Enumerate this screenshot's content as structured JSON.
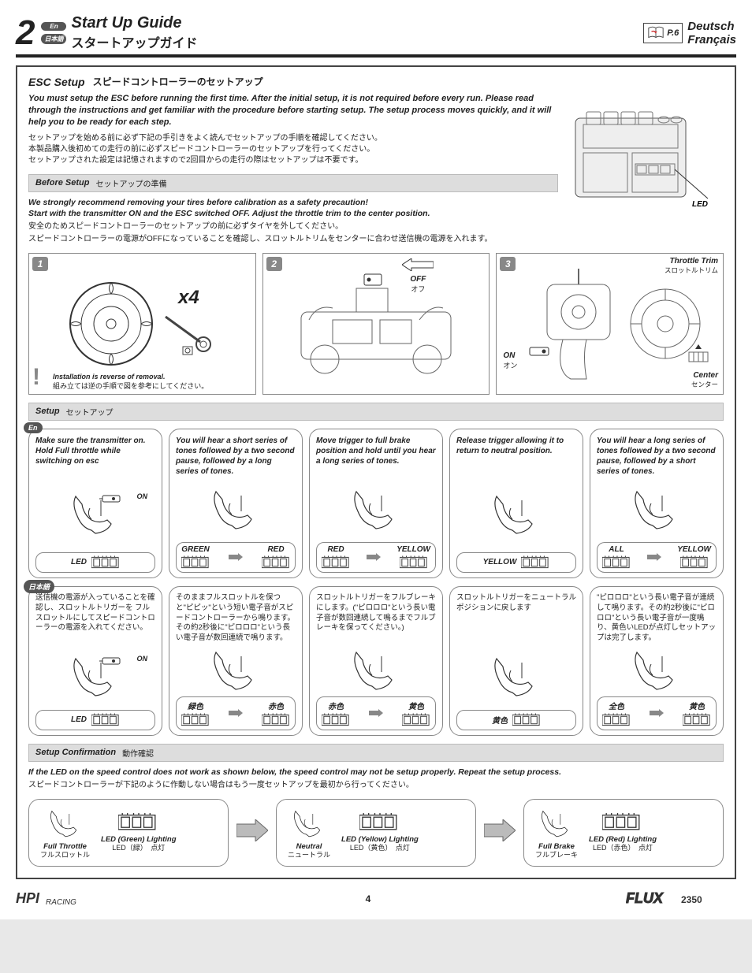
{
  "header": {
    "section_number": "2",
    "lang_en_bubble": "En",
    "lang_jp_bubble": "日本語",
    "title_en": "Start Up Guide",
    "title_jp": "スタートアップガイド",
    "page_ref": "P.6",
    "lang_de": "Deutsch",
    "lang_fr": "Français"
  },
  "esc": {
    "title_en": "ESC Setup",
    "title_jp": "スピードコントローラーのセットアップ",
    "intro_en": "You must setup the ESC before running the first time.  After the initial setup, it is not required before every run. Please read through the instructions and get familiar with the procedure before starting setup.  The setup process moves quickly, and it will help you to be ready for each step.",
    "intro_jp": "セットアップを始める前に必ず下記の手引きをよく読んでセットアップの手順を確認してください。\n本製品購入後初めての走行の前に必ずスピードコントローラーのセットアップを行ってください。\nセットアップされた設定は記憶されますので2回目からの走行の際はセットアップは不要です。",
    "led_label": "LED"
  },
  "before": {
    "bar_en": "Before Setup",
    "bar_jp": "セットアップの準備",
    "en1": "We strongly recommend removing your tires before calibration as a safety precaution!",
    "en2": "Start with the transmitter ON and the ESC switched OFF. Adjust the throttle trim to the center position.",
    "jp1": "安全のためスピードコントローラーのセットアップの前に必ずタイヤを外してください。",
    "jp2": "スピードコントローラーの電源がOFFになっていることを確認し、スロットルトリムをセンターに合わせ送信機の電源を入れます。"
  },
  "steps": {
    "s1": {
      "num": "1",
      "x4": "x4",
      "note_en": "Installation is reverse of removal.",
      "note_jp": "組み立ては逆の手順で図を参考にしてください。"
    },
    "s2": {
      "num": "2",
      "off_en": "OFF",
      "off_jp": "オフ"
    },
    "s3": {
      "num": "3",
      "on_en": "ON",
      "on_jp": "オン",
      "trim_en": "Throttle Trim",
      "trim_jp": "スロットルトリム",
      "center_en": "Center",
      "center_jp": "センター"
    }
  },
  "setup": {
    "bar_en": "Setup",
    "bar_jp": "セットアップ",
    "row_en_bubble": "En",
    "row_jp_bubble": "日本語",
    "on_label": "ON",
    "led_label": "LED",
    "en": [
      {
        "txt": "Make sure the transmitter on. Hold Full throttle while switching on esc",
        "footer_type": "led"
      },
      {
        "txt": "You will hear a short series of tones followed by a two second pause, followed by a long series of tones.",
        "footer_type": "arrow",
        "left": "GREEN",
        "right": "RED"
      },
      {
        "txt": "Move trigger to full brake position and hold until you hear a long series of tones.",
        "footer_type": "arrow",
        "left": "RED",
        "right": "YELLOW"
      },
      {
        "txt": "Release  trigger  allowing  it  to return to neutral position.",
        "footer_type": "single",
        "center": "YELLOW"
      },
      {
        "txt": "You will hear a long series of tones followed by a two second pause, followed by a short series of tones.",
        "footer_type": "arrow",
        "left": "ALL",
        "right": "YELLOW"
      }
    ],
    "jp": [
      {
        "txt": "送信機の電源が入っていることを確認し、スロットルトリガーを フルスロットルにしてスピードコントローラーの電源を入れてください。",
        "footer_type": "led"
      },
      {
        "txt": "そのままフルスロットルを保つと\"ピピッ\"という短い電子音がスピードコントローラーから鳴ります。その約2秒後に\"ピロロロ\"という長い電子音が数回連続で鳴ります。",
        "footer_type": "arrow",
        "left": "緑色",
        "right": "赤色"
      },
      {
        "txt": "スロットルトリガーをフルブレーキにします。(\"ピロロロ\"という長い電子音が数回連続して鳴るまでフルブレーキを保ってください。)",
        "footer_type": "arrow",
        "left": "赤色",
        "right": "黄色"
      },
      {
        "txt": "スロットルトリガーをニュートラルポジションに戻します",
        "footer_type": "single",
        "center": "黄色"
      },
      {
        "txt": "\"ピロロロ\"という長い電子音が連続して鳴ります。その約2秒後に\"ピロロロ\"という長い電子音が一度鳴り、黄色いLEDが点灯しセットアップは完了します。",
        "footer_type": "arrow",
        "left": "全色",
        "right": "黄色"
      }
    ]
  },
  "confirm": {
    "bar_en": "Setup Confirmation",
    "bar_jp": "動作確認",
    "intro_en": "If the LED on the speed control does not work as shown below, the speed control may not be setup properly. Repeat the setup process.",
    "intro_jp": "スピードコントローラーが下記のように作動しない場合はもう一度セットアップを最初から行ってください。",
    "g1": {
      "a_en": "Full Throttle",
      "a_jp": "フルスロットル",
      "b_en": "LED (Green)  Lighting",
      "b_jp": "LED（緑）　点灯"
    },
    "g2": {
      "a_en": "Neutral",
      "a_jp": "ニュートラル",
      "b_en": "LED (Yellow) Lighting",
      "b_jp": "LED（黄色）　点灯"
    },
    "g3": {
      "a_en": "Full Brake",
      "a_jp": "フルブレーキ",
      "b_en": "LED (Red)   Lighting",
      "b_jp": "LED（赤色）　点灯"
    }
  },
  "footer": {
    "page_no": "4"
  },
  "colors": {
    "bar_bg": "#dddddd",
    "border": "#888888",
    "bubble": "#555555"
  }
}
